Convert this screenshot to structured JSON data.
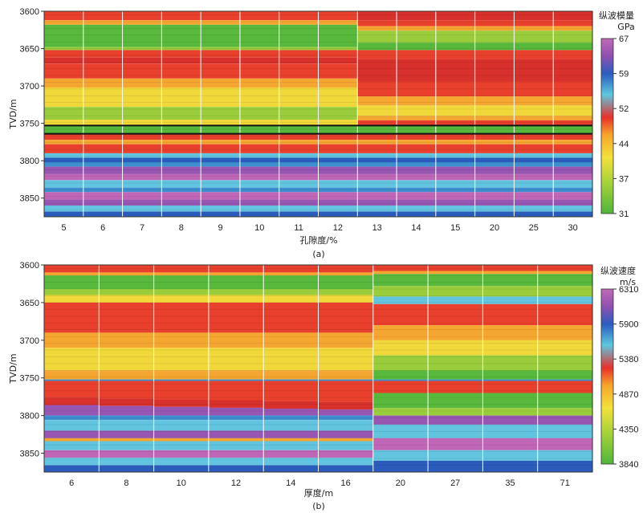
{
  "chart_data": [
    {
      "type": "heatmap",
      "panel_label": "(a)",
      "xlabel": "孔隙度/%",
      "ylabel": "TVD/m",
      "categories": [
        "5",
        "6",
        "7",
        "8",
        "9",
        "10",
        "11",
        "12",
        "13",
        "14",
        "15",
        "20",
        "25",
        "30"
      ],
      "y_ticks": [
        3600,
        3650,
        3700,
        3750,
        3800,
        3850
      ],
      "ylim": [
        3600,
        3875
      ],
      "colorbar": {
        "title_line1": "纵波模量",
        "title_line2": "GPa",
        "ticks": [
          "67",
          "59",
          "52",
          "44",
          "37",
          "31"
        ],
        "min": 31,
        "max": 67
      },
      "interface_depths": [
        3753,
        3764
      ]
    },
    {
      "type": "heatmap",
      "panel_label": "(b)",
      "xlabel": "厚度/m",
      "ylabel": "TVD/m",
      "categories": [
        "6",
        "8",
        "10",
        "12",
        "14",
        "16",
        "20",
        "27",
        "35",
        "71"
      ],
      "y_ticks": [
        3600,
        3650,
        3700,
        3750,
        3800,
        3850
      ],
      "ylim": [
        3600,
        3875
      ],
      "colorbar": {
        "title_line1": "纵波速度",
        "title_line2": "m/s",
        "ticks": [
          "6310",
          "5900",
          "5380",
          "4870",
          "4350",
          "3840"
        ],
        "min": 3840,
        "max": 6310
      }
    }
  ]
}
